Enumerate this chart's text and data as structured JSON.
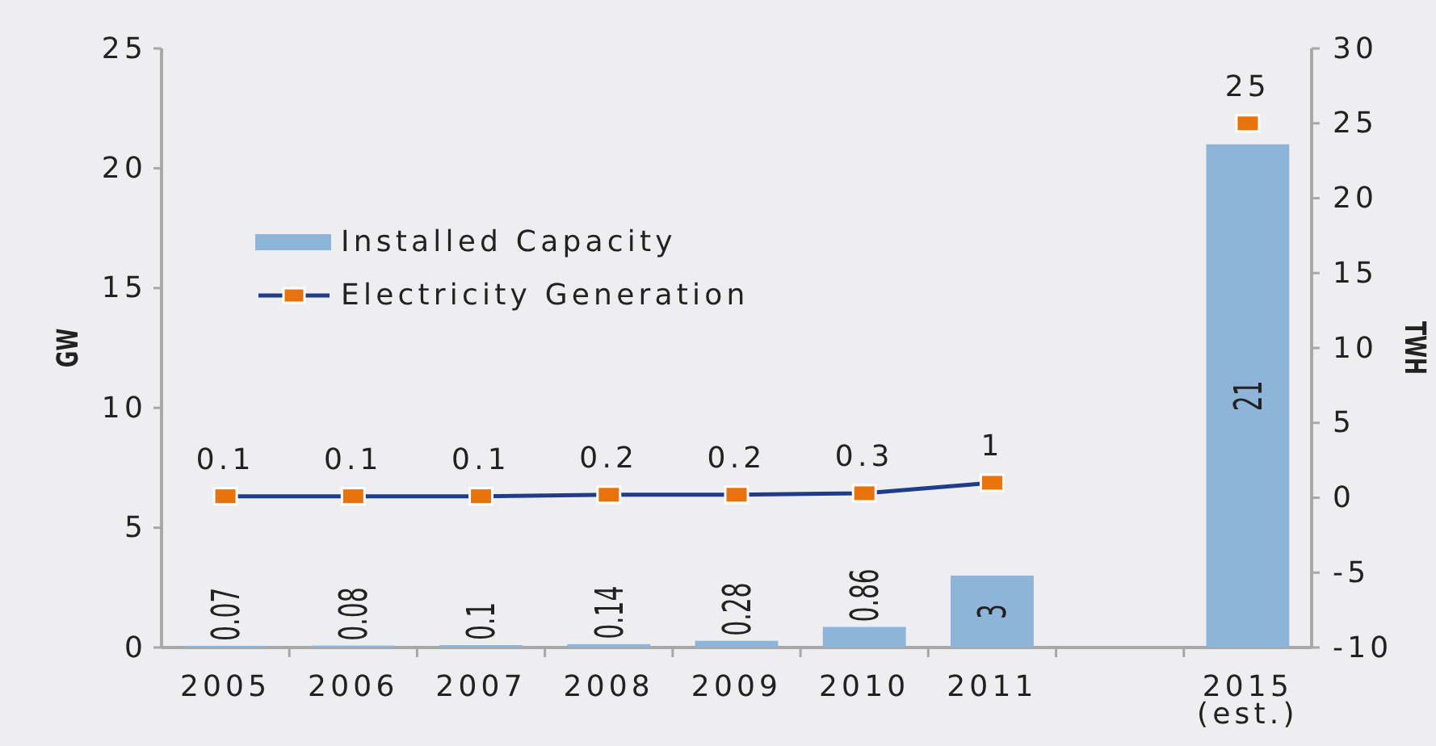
{
  "chart_data": {
    "type": "bar",
    "categories": [
      "2005",
      "2006",
      "2007",
      "2008",
      "2009",
      "2010",
      "2011",
      null,
      "2015\n(est.)"
    ],
    "series": [
      {
        "name": "Installed Capacity",
        "color": "#8fb4da",
        "values": [
          0.07,
          0.08,
          0.1,
          0.14,
          0.28,
          0.86,
          3,
          null,
          21
        ]
      },
      {
        "name": "Electricity Generation",
        "type": "line",
        "axis": "y2",
        "color": "#1f3c88",
        "colors": [
          "#e8730c",
          "#e8730c",
          "#e8730c",
          "#e8730c",
          "#e8730c",
          "#e8730c",
          "#e8730c",
          null,
          "#e8730c"
        ],
        "values": [
          0.1,
          0.1,
          0.1,
          0.2,
          0.2,
          0.3,
          1,
          null,
          25
        ]
      }
    ],
    "ylabel": "GW",
    "y2label": "TWH",
    "ylim": [
      0,
      25
    ],
    "yticks": [
      0,
      5,
      10,
      15,
      20,
      25
    ],
    "y2lim": [
      -10,
      30
    ],
    "y2ticks": [
      -10,
      -5,
      0,
      5,
      10,
      15,
      20,
      25,
      30
    ],
    "data_labels": true,
    "legend": "top left",
    "marker": "square"
  }
}
